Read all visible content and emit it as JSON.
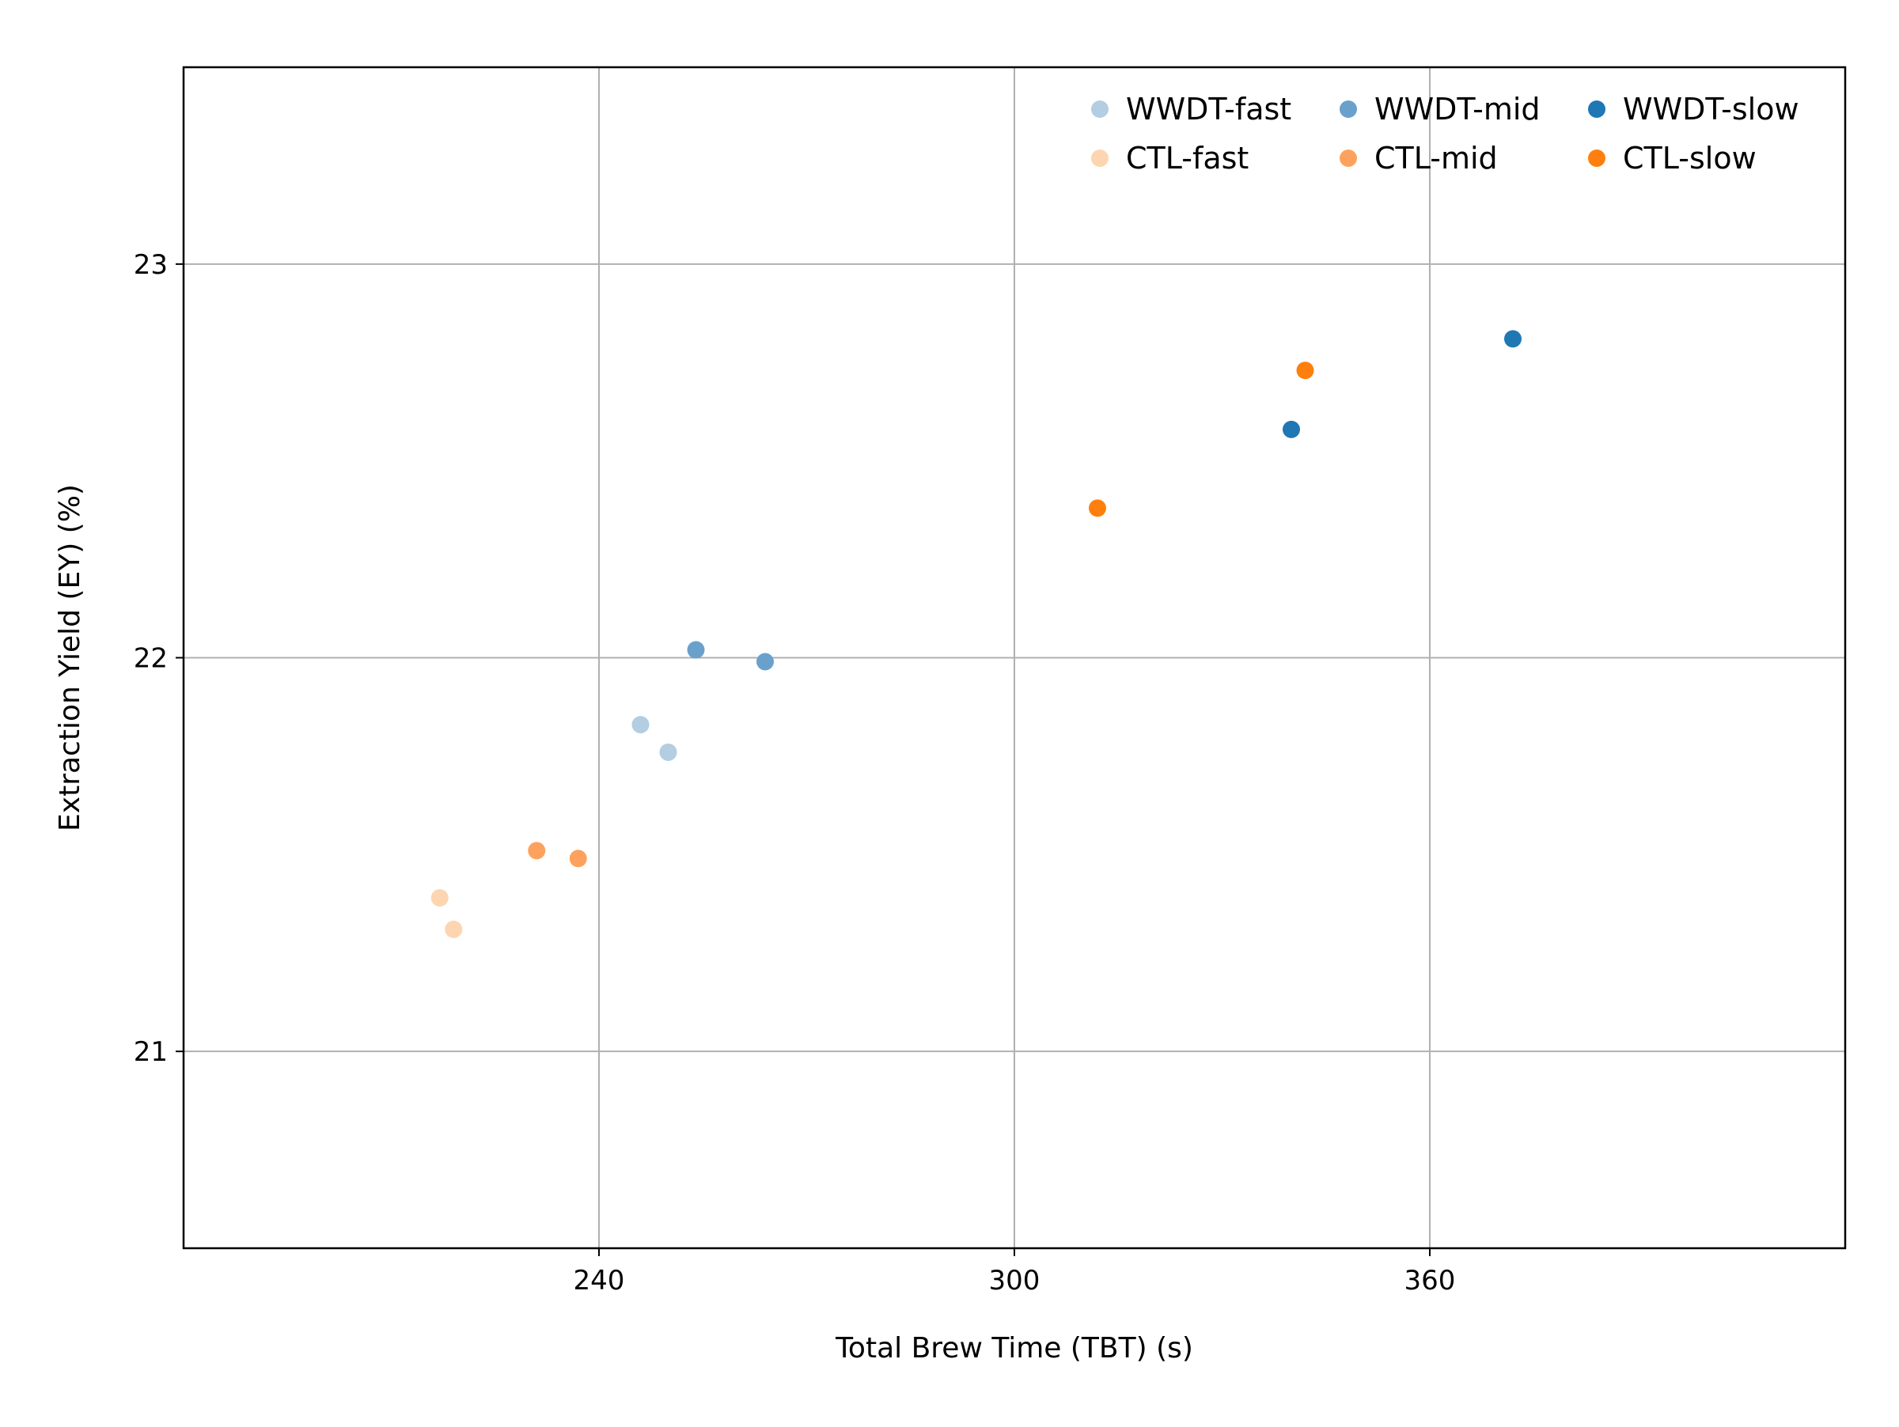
{
  "chart_data": {
    "type": "scatter",
    "xlabel": "Total Brew Time (TBT) (s)",
    "ylabel": "Extraction Yield (EY) (%)",
    "xlim": [
      180,
      420
    ],
    "ylim": [
      20.5,
      23.5
    ],
    "xticks": [
      240,
      300,
      360
    ],
    "yticks": [
      21,
      22,
      23
    ],
    "grid": true,
    "legend_position": "top-right",
    "series": [
      {
        "name": "WWDT-fast",
        "color": "#b3cde3",
        "points": [
          {
            "x": 246,
            "y": 21.83
          },
          {
            "x": 250,
            "y": 21.76
          }
        ]
      },
      {
        "name": "WWDT-mid",
        "color": "#6aa0cc",
        "points": [
          {
            "x": 254,
            "y": 22.02
          },
          {
            "x": 264,
            "y": 21.99
          }
        ]
      },
      {
        "name": "WWDT-slow",
        "color": "#1f77b4",
        "points": [
          {
            "x": 340,
            "y": 22.58
          },
          {
            "x": 372,
            "y": 22.81
          }
        ]
      },
      {
        "name": "CTL-fast",
        "color": "#fdd5b1",
        "points": [
          {
            "x": 217,
            "y": 21.39
          },
          {
            "x": 219,
            "y": 21.31
          }
        ]
      },
      {
        "name": "CTL-mid",
        "color": "#fda25e",
        "points": [
          {
            "x": 231,
            "y": 21.51
          },
          {
            "x": 237,
            "y": 21.49
          }
        ]
      },
      {
        "name": "CTL-slow",
        "color": "#ff7f0e",
        "points": [
          {
            "x": 312,
            "y": 22.38
          },
          {
            "x": 342,
            "y": 22.73
          }
        ]
      }
    ]
  }
}
